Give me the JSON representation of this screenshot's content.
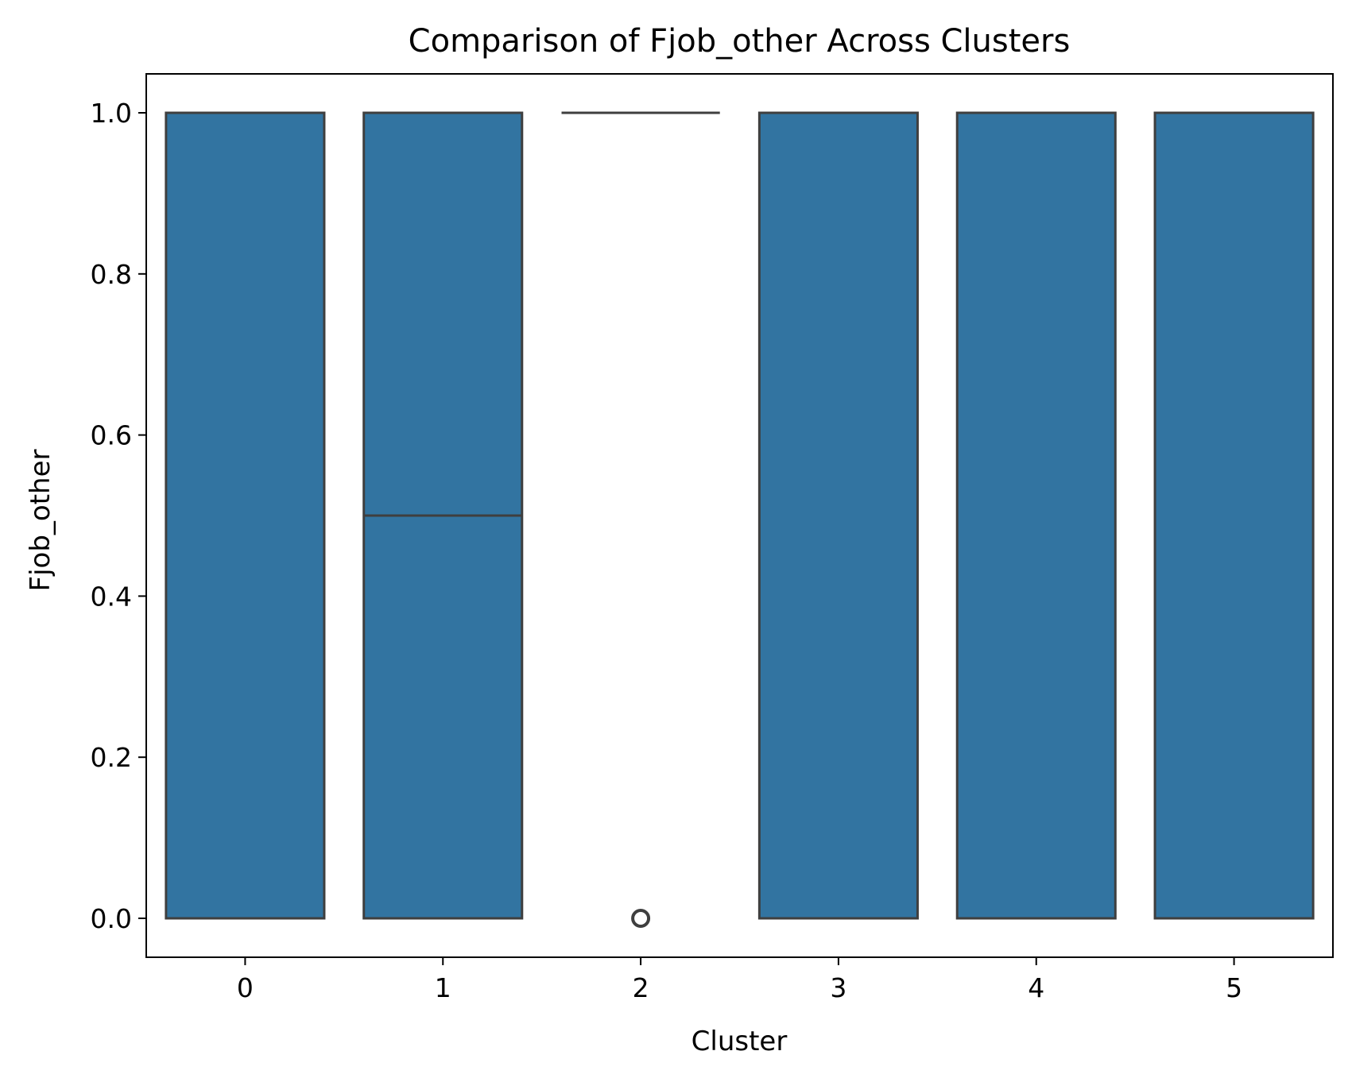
{
  "chart_data": {
    "type": "box",
    "title": "Comparison of Fjob_other Across Clusters",
    "xlabel": "Cluster",
    "ylabel": "Fjob_other",
    "categories": [
      "0",
      "1",
      "2",
      "3",
      "4",
      "5"
    ],
    "boxes": [
      {
        "category": "0",
        "q1": 0.0,
        "median": 1.0,
        "q3": 1.0,
        "whisker_low": 0.0,
        "whisker_high": 1.0,
        "outliers": []
      },
      {
        "category": "1",
        "q1": 0.0,
        "median": 0.5,
        "q3": 1.0,
        "whisker_low": 0.0,
        "whisker_high": 1.0,
        "outliers": []
      },
      {
        "category": "2",
        "q1": 1.0,
        "median": 1.0,
        "q3": 1.0,
        "whisker_low": 1.0,
        "whisker_high": 1.0,
        "outliers": [
          0.0
        ]
      },
      {
        "category": "3",
        "q1": 0.0,
        "median": 1.0,
        "q3": 1.0,
        "whisker_low": 0.0,
        "whisker_high": 1.0,
        "outliers": []
      },
      {
        "category": "4",
        "q1": 0.0,
        "median": 1.0,
        "q3": 1.0,
        "whisker_low": 0.0,
        "whisker_high": 1.0,
        "outliers": []
      },
      {
        "category": "5",
        "q1": 0.0,
        "median": 1.0,
        "q3": 1.0,
        "whisker_low": 0.0,
        "whisker_high": 1.0,
        "outliers": []
      }
    ],
    "ylim": [
      -0.05,
      1.05
    ],
    "yticks": [
      "0.0",
      "0.2",
      "0.4",
      "0.6",
      "0.8",
      "1.0"
    ],
    "grid": false,
    "legend": "none",
    "colors": {
      "box_fill": "#3274a1",
      "box_edge": "#3f3f3f",
      "axes": "#000000"
    }
  }
}
